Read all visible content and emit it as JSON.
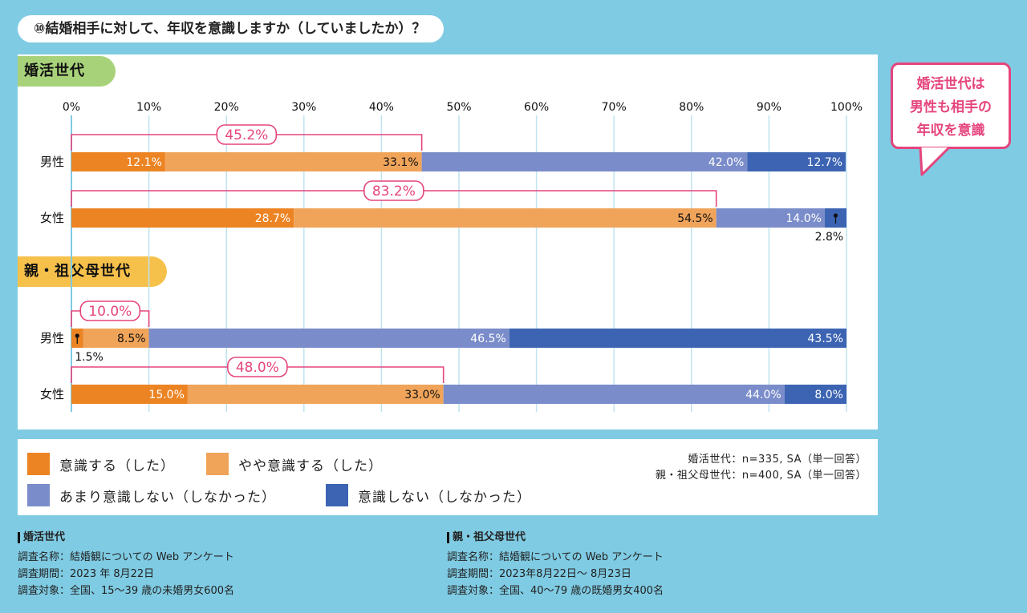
{
  "question": "⑩結婚相手に対して、年収を意識しますか（していましたか）？",
  "callout": {
    "lines": [
      "婚活世代は",
      "男性も相手の",
      "年収を意識"
    ]
  },
  "colors": {
    "c1": "#ec8424",
    "c2": "#f0a45a",
    "c3": "#7a8cca",
    "c4": "#3c64b3",
    "bracket": "#e5457d"
  },
  "legend": {
    "items": [
      {
        "label": "意識する（した）",
        "color": "#ec8424"
      },
      {
        "label": "やや意識する（した）",
        "color": "#f0a45a"
      },
      {
        "label": "あまり意識しない（しなかった）",
        "color": "#7a8cca"
      },
      {
        "label": "意識しない（しなかった）",
        "color": "#3c64b3"
      }
    ],
    "note_line1": "婚活世代：n=335, SA（単一回答）",
    "note_line2": "親・祖父母世代：n=400, SA（単一回答）"
  },
  "chart_data": {
    "type": "bar",
    "orientation": "horizontal-stacked",
    "xlim": [
      0,
      100
    ],
    "ticks": [
      "0%",
      "10%",
      "20%",
      "30%",
      "40%",
      "50%",
      "60%",
      "70%",
      "80%",
      "90%",
      "100%"
    ],
    "groups": [
      {
        "name": "婚活世代",
        "rows": [
          {
            "label": "男性",
            "values": [
              12.1,
              33.1,
              42.0,
              12.7
            ],
            "sum_label": "45.2%"
          },
          {
            "label": "女性",
            "values": [
              28.7,
              54.5,
              14.0,
              2.8
            ],
            "sum_label": "83.2%"
          }
        ]
      },
      {
        "name": "親・祖父母世代",
        "rows": [
          {
            "label": "男性",
            "values": [
              1.5,
              8.5,
              46.5,
              43.5
            ],
            "sum_label": "10.0%"
          },
          {
            "label": "女性",
            "values": [
              15.0,
              33.0,
              44.0,
              8.0
            ],
            "sum_label": "48.0%"
          }
        ]
      }
    ],
    "series": [
      "意識する（した）",
      "やや意識する（した）",
      "あまり意識しない（しなかった）",
      "意識しない（しなかった）"
    ]
  },
  "sources": [
    {
      "heading": "婚活世代",
      "lines": [
        "調査名称：結婚観についての Web アンケート",
        "調査期間：2023 年 8月22日",
        "調査対象：全国、15～39 歳の未婚男女600名"
      ]
    },
    {
      "heading": "親・祖父母世代",
      "lines": [
        "調査名称：結婚観についての Web アンケート",
        "調査期間：2023年8月22日～ 8月23日",
        "調査対象：全国、40～79 歳の既婚男女400名"
      ]
    }
  ]
}
